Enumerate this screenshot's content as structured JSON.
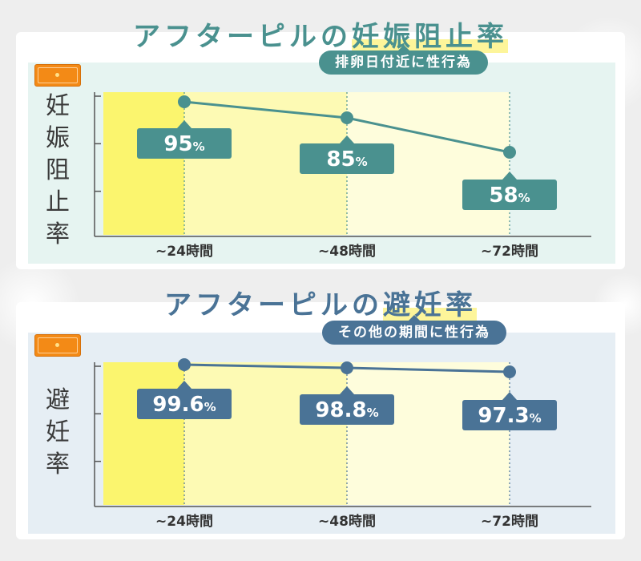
{
  "charts": [
    {
      "title_prefix": "アフターピルの",
      "title_highlight": "妊娠阻止率",
      "condition": "排卵日付近に性行為",
      "ylabel": "妊\n娠\n阻\n止\n率",
      "categories": [
        "~24時間",
        "~48時間",
        "~72時間"
      ],
      "labels": [
        "95%",
        "85%",
        "58%"
      ],
      "colors": {
        "accent": "#4a918f",
        "background": "#e6f4f1"
      }
    },
    {
      "title_prefix": "アフターピルの",
      "title_highlight": "避妊率",
      "condition": "その他の期間に性行為",
      "ylabel": "避\n妊\n率",
      "categories": [
        "~24時間",
        "~48時間",
        "~72時間"
      ],
      "labels": [
        "99.6%",
        "98.8%",
        "97.3%"
      ],
      "colors": {
        "accent": "#4a7396",
        "background": "#e6eef4"
      }
    }
  ],
  "chart_data": [
    {
      "type": "line",
      "title": "アフターピルの妊娠阻止率",
      "subtitle": "排卵日付近に性行為",
      "ylabel": "妊娠阻止率",
      "categories": [
        "~24時間",
        "~48時間",
        "~72時間"
      ],
      "values": [
        95,
        85,
        58
      ],
      "unit": "%",
      "ylim": [
        0,
        100
      ],
      "grid": false
    },
    {
      "type": "line",
      "title": "アフターピルの避妊率",
      "subtitle": "その他の期間に性行為",
      "ylabel": "避妊率",
      "categories": [
        "~24時間",
        "~48時間",
        "~72時間"
      ],
      "values": [
        99.6,
        98.8,
        97.3
      ],
      "unit": "%",
      "ylim": [
        0,
        100
      ],
      "grid": false
    }
  ]
}
